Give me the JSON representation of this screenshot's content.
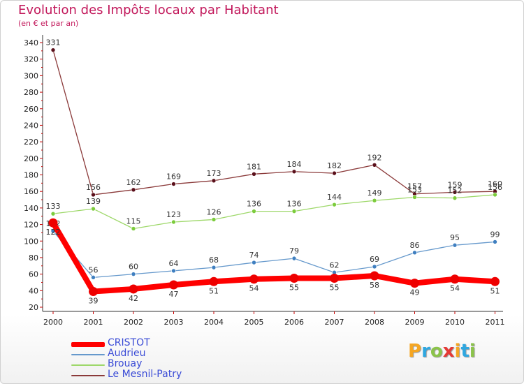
{
  "title": "Evolution des Impôts locaux par Habitant",
  "subtitle": "(en € et par an)",
  "logo": {
    "letters": [
      "P",
      "r",
      "o",
      "x",
      "i",
      "t",
      "i"
    ],
    "colors": [
      "#f5a623",
      "#2fa7e0",
      "#8bc34a",
      "#e53935",
      "#f5a623",
      "#2fa7e0",
      "#8bc34a"
    ]
  },
  "chart_data": {
    "type": "line",
    "title": "Evolution des Impôts locaux par Habitant",
    "subtitle": "(en € et par an)",
    "xlabel": "",
    "ylabel": "",
    "categories": [
      "2000",
      "2001",
      "2002",
      "2003",
      "2004",
      "2005",
      "2006",
      "2007",
      "2008",
      "2009",
      "2010",
      "2011"
    ],
    "yticks": [
      20,
      40,
      60,
      80,
      100,
      120,
      140,
      160,
      180,
      200,
      220,
      240,
      260,
      280,
      300,
      320,
      340
    ],
    "ylim": [
      20,
      340
    ],
    "grid": false,
    "legend_position": "bottom-left",
    "series": [
      {
        "name": "Le Mesnil-Patry",
        "color": "#8b3a3a",
        "marker": "#5a0f1a",
        "values": [
          331,
          156,
          162,
          169,
          173,
          181,
          184,
          182,
          192,
          157,
          159,
          160
        ]
      },
      {
        "name": "Brouay",
        "color": "#9ed86a",
        "marker": "#7ccc3c",
        "values": [
          133,
          139,
          115,
          123,
          126,
          136,
          136,
          144,
          149,
          153,
          152,
          156
        ],
        "labels": [
          "133",
          "139",
          "115",
          "123",
          "126",
          "136",
          "136",
          "144",
          "149",
          "153",
          "152",
          "156"
        ]
      },
      {
        "name": "Audrieu",
        "color": "#6699cc",
        "marker": "#3f7fc0",
        "values": [
          112,
          56,
          60,
          64,
          68,
          74,
          79,
          62,
          69,
          86,
          95,
          99
        ],
        "labels": [
          "112",
          "56",
          "60",
          "64",
          "68",
          "74",
          "79",
          "62",
          "69",
          "86",
          "95",
          "99"
        ]
      },
      {
        "name": "CRISTOT",
        "color": "#ff0000",
        "marker": "#ee0000",
        "values": [
          122,
          39,
          42,
          47,
          51,
          54,
          55,
          55,
          58,
          49,
          54,
          51
        ],
        "labels": [
          "122",
          "39",
          "42",
          "47",
          "51",
          "54",
          "55",
          "55",
          "58",
          "49",
          "54",
          "51"
        ]
      }
    ]
  },
  "legend": [
    {
      "name": "CRISTOT",
      "color": "#ff0000",
      "thick": 7
    },
    {
      "name": "Audrieu",
      "color": "#6699cc",
      "thick": 2
    },
    {
      "name": "Brouay",
      "color": "#9ed86a",
      "thick": 2
    },
    {
      "name": "Le Mesnil-Patry",
      "color": "#8b3a3a",
      "thick": 2
    }
  ]
}
